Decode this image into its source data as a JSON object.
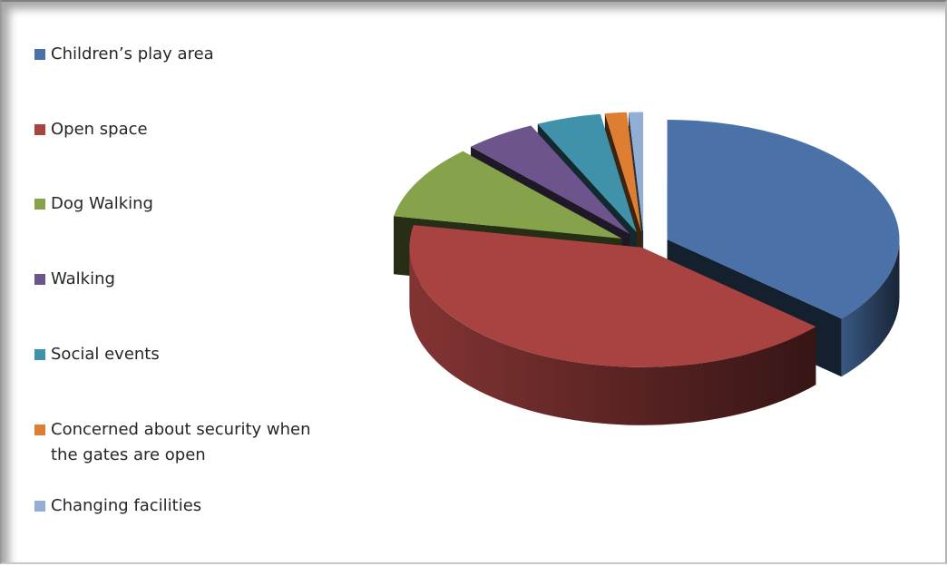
{
  "chart_data": {
    "type": "pie",
    "style": "3d-exploded",
    "categories": [
      "Children’s play area",
      "Open space",
      "Dog Walking",
      "Walking",
      " Social events",
      "Concerned about security when\nthe gates are open",
      "Changing facilities"
    ],
    "values": [
      36.5,
      41.5,
      10.0,
      5.0,
      4.5,
      1.5,
      1.0
    ],
    "colors": [
      "#4a72a8",
      "#a84341",
      "#86a34c",
      "#6d548d",
      "#3f92aa",
      "#dd7e32",
      "#93aed5"
    ],
    "legend_position": "left"
  }
}
